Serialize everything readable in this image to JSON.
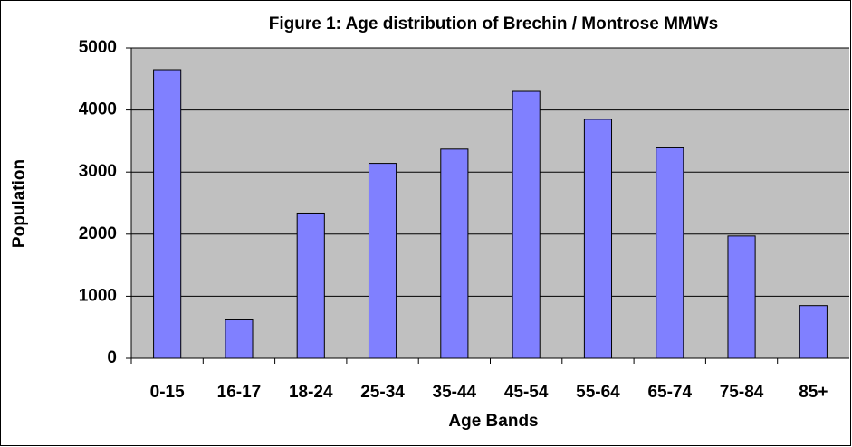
{
  "chart_data": {
    "type": "bar",
    "title": "Figure 1: Age distribution of Brechin / Montrose MMWs",
    "x_label": "Age Bands",
    "y_label": "Population",
    "categories": [
      "0-15",
      "16-17",
      "18-24",
      "25-34",
      "35-44",
      "45-54",
      "55-64",
      "65-74",
      "75-84",
      "85+"
    ],
    "values": [
      4650,
      620,
      2340,
      3140,
      3370,
      4300,
      3850,
      3390,
      1970,
      850
    ],
    "color": "#8080ff",
    "ylim": [
      0,
      5000
    ],
    "yticks": [
      0,
      1000,
      2000,
      3000,
      4000,
      5000
    ],
    "grid": true
  }
}
